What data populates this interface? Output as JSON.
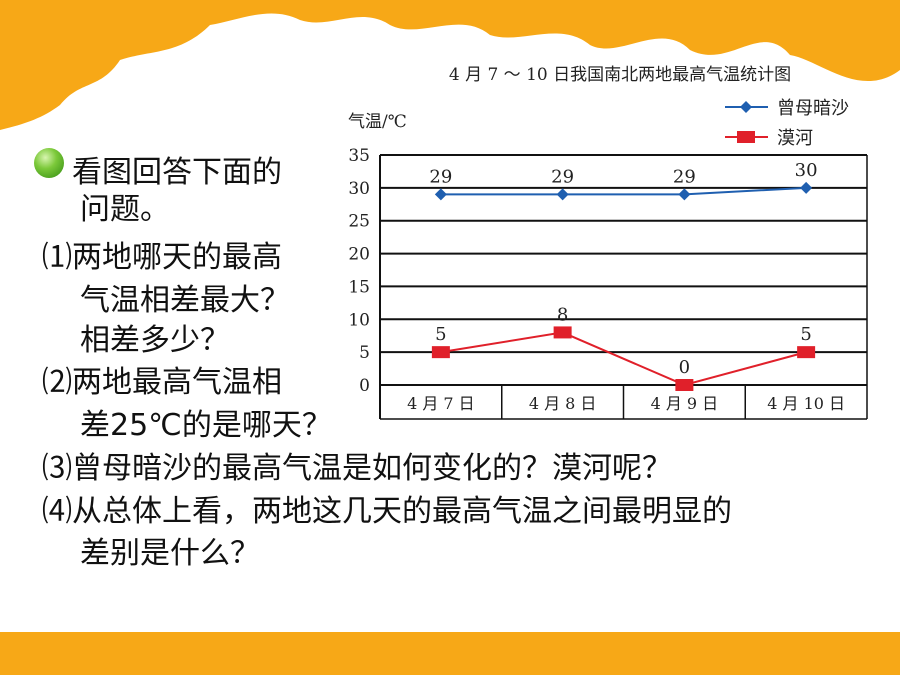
{
  "slide": {
    "colors": {
      "accent": "#f7a817",
      "bullet": "#4caf1a"
    },
    "lines": [
      "看图回答下面的",
      "问题。",
      "⑴两地哪天的最高",
      "气温相差最大？",
      "相差多少？",
      "⑵两地最高气温相",
      "差25℃的是哪天？",
      "⑶曾母暗沙的最高气温是如何变化的？漠河呢？",
      "⑷从总体上看，两地这几天的最高气温之间最明显的",
      "差别是什么？"
    ]
  },
  "chart_data": {
    "type": "line",
    "title": "4 月 7 ～ 10 日我国南北两地最高气温统计图",
    "ylabel": "气温/℃",
    "xlabel": "",
    "categories": [
      "4 月 7 日",
      "4 月 8 日",
      "4 月 9 日",
      "4 月 10 日"
    ],
    "ylim": [
      0,
      35
    ],
    "yticks": [
      0,
      5,
      10,
      15,
      20,
      25,
      30,
      35
    ],
    "grid": true,
    "legend_position": "top-right",
    "series": [
      {
        "name": "曾母暗沙",
        "values": [
          29,
          29,
          29,
          30
        ],
        "color": "#1f5fb0",
        "marker": "diamond"
      },
      {
        "name": "漠河",
        "values": [
          5,
          8,
          0,
          5
        ],
        "color": "#e0202a",
        "marker": "square"
      }
    ]
  }
}
